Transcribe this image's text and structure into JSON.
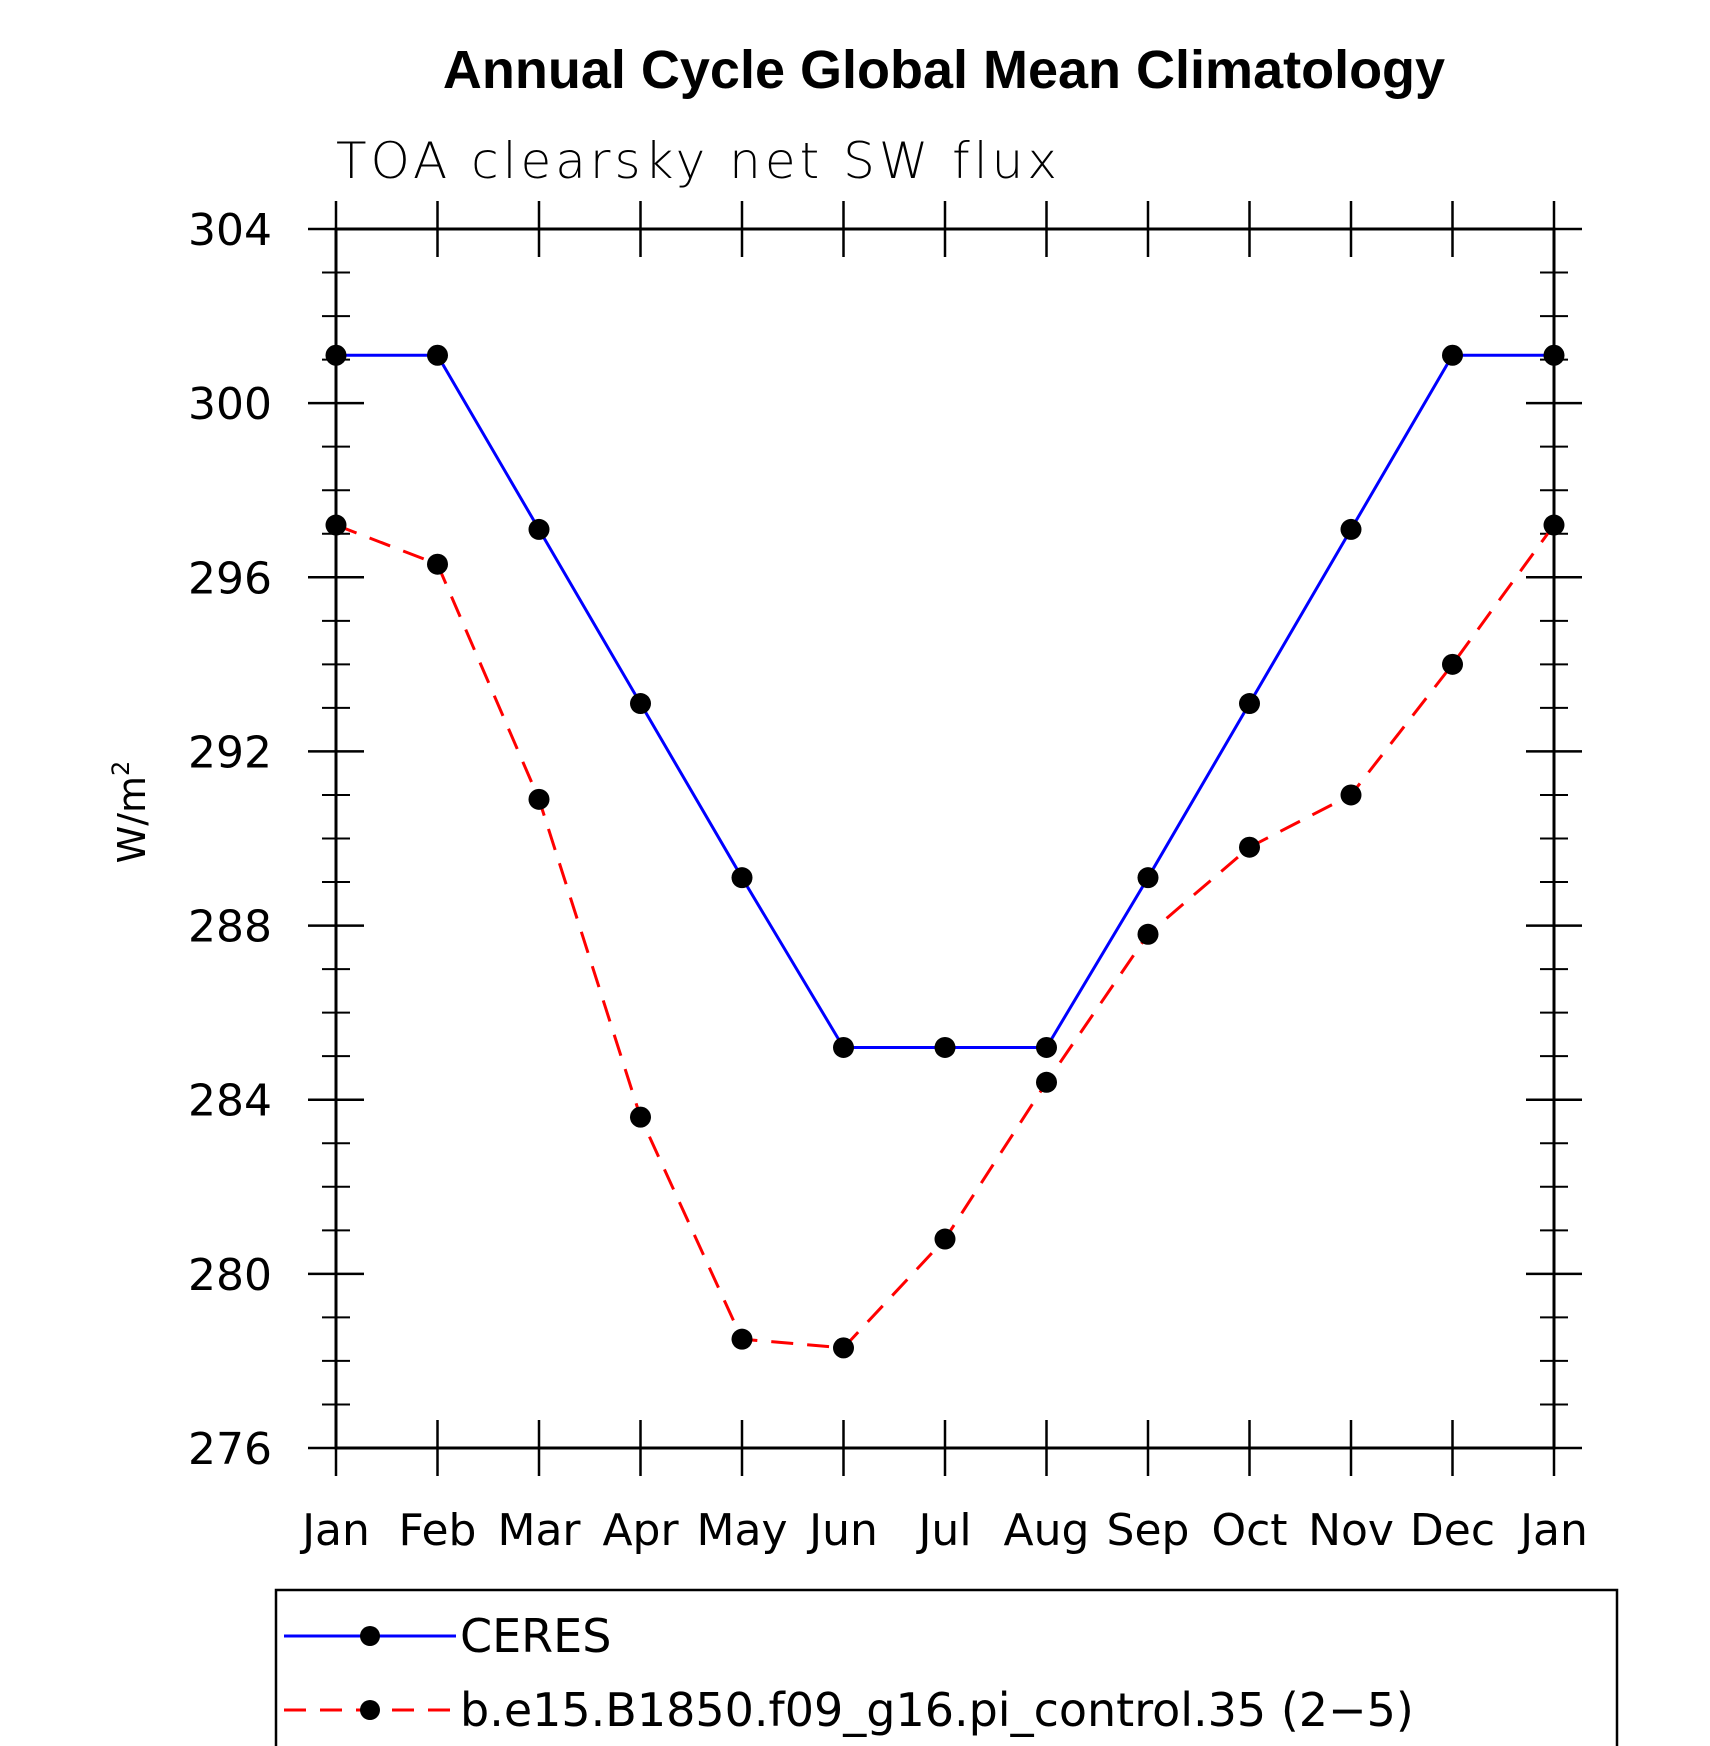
{
  "chart_data": {
    "type": "line",
    "title": "Annual Cycle Global Mean Climatology",
    "subtitle": "TOA clearsky net SW flux",
    "ylabel": "W/m",
    "ylabel_superscript": "2",
    "xlabel": "",
    "categories": [
      "Jan",
      "Feb",
      "Mar",
      "Apr",
      "May",
      "Jun",
      "Jul",
      "Aug",
      "Sep",
      "Oct",
      "Nov",
      "Dec",
      "Jan"
    ],
    "ylim": [
      276,
      304
    ],
    "yticks": [
      276,
      280,
      284,
      288,
      292,
      296,
      300,
      304
    ],
    "ytick_labels": [
      "276",
      "280",
      "284",
      "288",
      "292",
      "296",
      "300",
      "304"
    ],
    "grid": false,
    "legend_position": "bottom",
    "series": [
      {
        "name": "CERES",
        "color": "#0000ff",
        "style": "solid",
        "marker": "circle",
        "values": [
          301.1,
          301.1,
          297.1,
          293.1,
          289.1,
          285.2,
          285.2,
          285.2,
          289.1,
          293.1,
          297.1,
          301.1,
          301.1
        ]
      },
      {
        "name": "b.e15.B1850.f09_g16.pi_control.35 (2−5)",
        "color": "#ff0000",
        "style": "dashed",
        "marker": "circle",
        "values": [
          297.2,
          296.3,
          290.9,
          283.6,
          278.5,
          278.3,
          280.8,
          284.4,
          287.8,
          289.8,
          291.0,
          294.0,
          297.2
        ]
      }
    ]
  }
}
